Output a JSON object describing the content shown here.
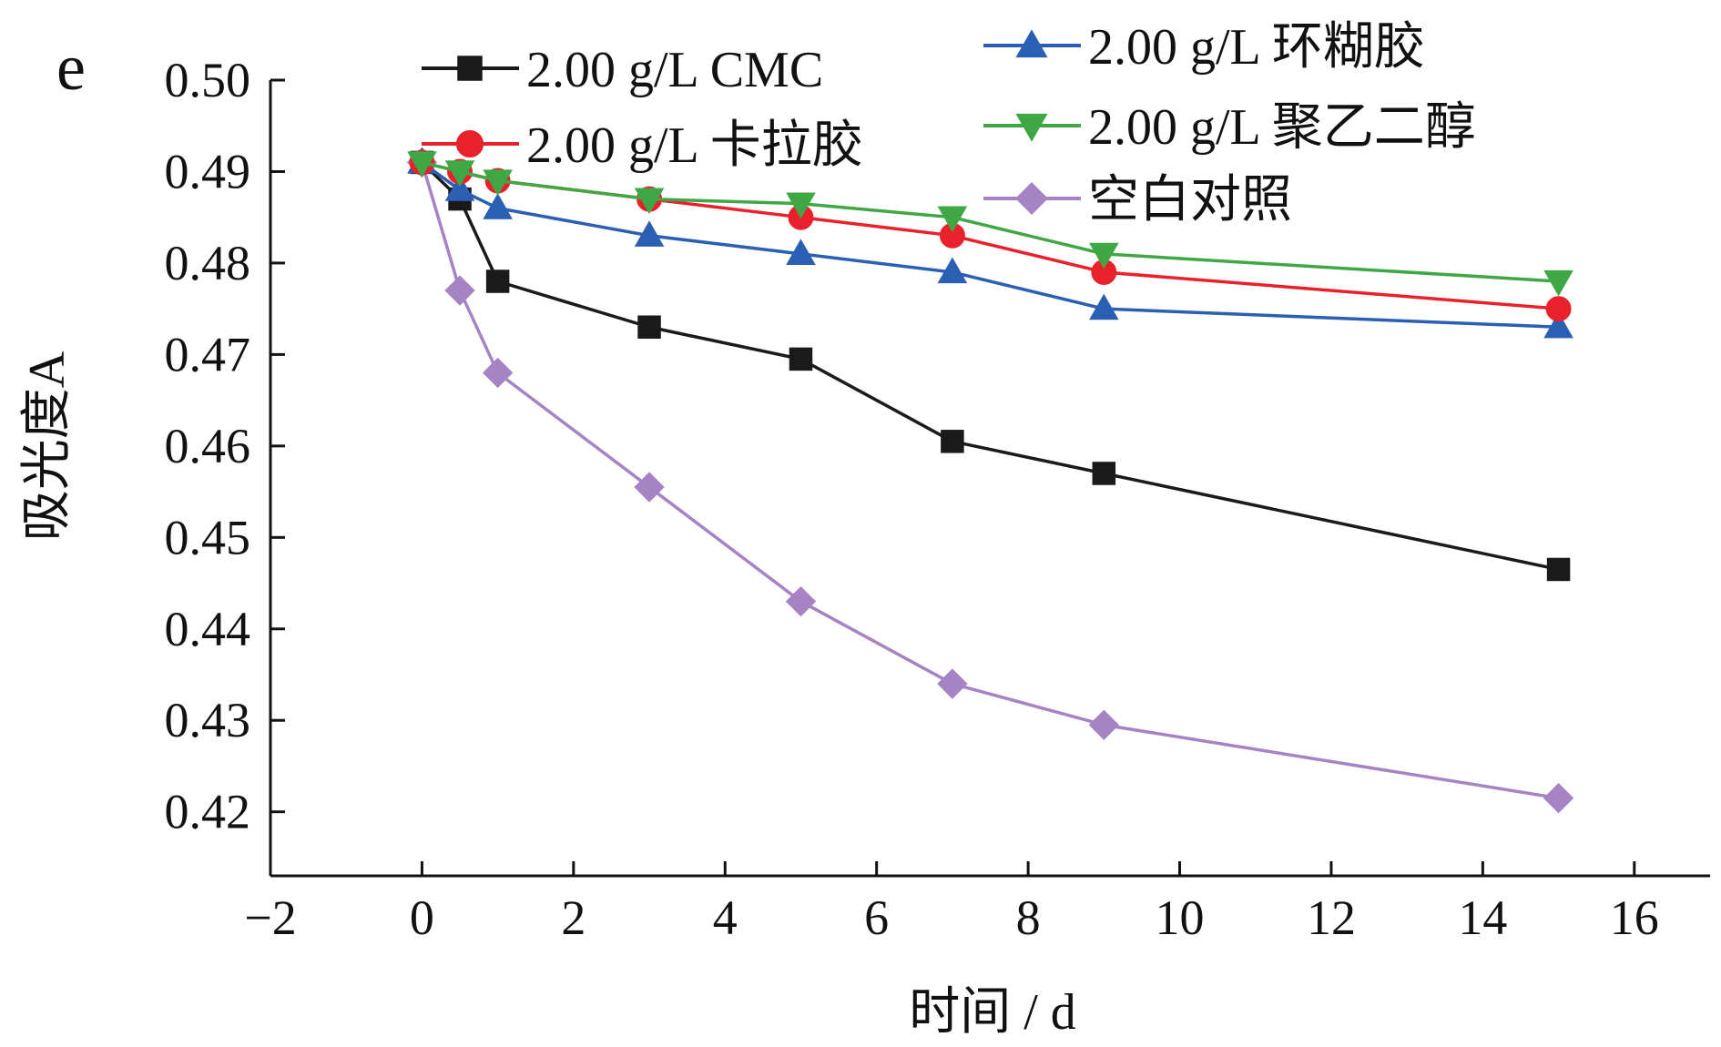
{
  "panel_label": "e",
  "chart_data": {
    "type": "line",
    "title": "",
    "xlabel": "时间 / d",
    "ylabel": "吸光度A",
    "xlim": [
      -2,
      17
    ],
    "ylim": [
      0.413,
      0.5
    ],
    "x_ticks": [
      -2,
      0,
      2,
      4,
      6,
      8,
      10,
      12,
      14,
      16
    ],
    "x_tick_labels": [
      "−2",
      "0",
      "2",
      "4",
      "6",
      "8",
      "10",
      "12",
      "14",
      "16"
    ],
    "y_ticks": [
      0.42,
      0.43,
      0.44,
      0.45,
      0.46,
      0.47,
      0.48,
      0.49,
      0.5
    ],
    "y_tick_labels": [
      "0.42",
      "0.43",
      "0.44",
      "0.45",
      "0.46",
      "0.47",
      "0.48",
      "0.49",
      "0.50"
    ],
    "grid": false,
    "legend_position": "top",
    "x": [
      0,
      0.5,
      1,
      3,
      5,
      7,
      9,
      15
    ],
    "series": [
      {
        "name": "2.00 g/L CMC",
        "color": "#1a1a1a",
        "marker": "square",
        "values": [
          0.491,
          0.487,
          0.478,
          0.473,
          0.4695,
          0.4605,
          0.457,
          0.4465
        ]
      },
      {
        "name": "2.00 g/L 卡拉胶",
        "color": "#e8212b",
        "marker": "circle",
        "values": [
          0.491,
          0.49,
          0.489,
          0.487,
          0.485,
          0.483,
          0.479,
          0.475
        ]
      },
      {
        "name": "2.00 g/L 环糊胶",
        "color": "#2b5fb4",
        "marker": "triangle-up",
        "values": [
          0.491,
          0.488,
          0.486,
          0.483,
          0.481,
          0.479,
          0.475,
          0.473
        ]
      },
      {
        "name": "2.00 g/L 聚乙二醇",
        "color": "#3fa845",
        "marker": "triangle-down",
        "values": [
          0.491,
          0.49,
          0.489,
          0.487,
          0.4865,
          0.485,
          0.481,
          0.478
        ]
      },
      {
        "name": "空白对照",
        "color": "#a583c4",
        "marker": "diamond",
        "values": [
          0.491,
          0.477,
          0.468,
          0.4555,
          0.443,
          0.434,
          0.4295,
          0.4215
        ]
      }
    ]
  }
}
